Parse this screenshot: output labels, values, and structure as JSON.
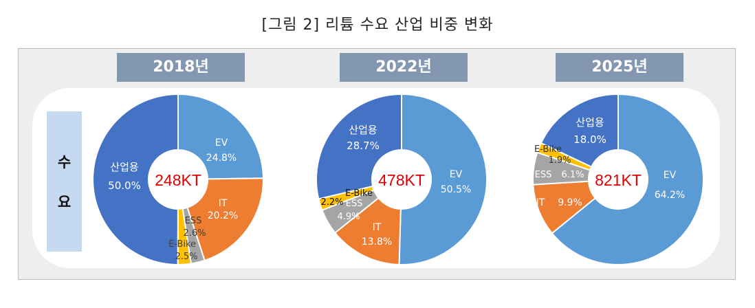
{
  "title": "[그림 2] 리튬 수요 산업 비중 변화",
  "row_label": [
    "수",
    "요"
  ],
  "colors": {
    "산업용": "#4472c4",
    "EV": "#5b9bd5",
    "IT": "#ed7d31",
    "ESS": "#a5a5a5",
    "E-Bike": "#ffc000",
    "total_text": "#e00000"
  },
  "chart_data": [
    {
      "type": "pie",
      "year": "2018년",
      "total": "248KT",
      "slices": [
        {
          "name": "EV",
          "value": 24.8,
          "label": "24.8%"
        },
        {
          "name": "IT",
          "value": 20.2,
          "label": "20.2%"
        },
        {
          "name": "ESS",
          "value": 2.6,
          "label": "2.6%"
        },
        {
          "name": "E-Bike",
          "value": 2.5,
          "label": "2.5%"
        },
        {
          "name": "산업용",
          "value": 50.0,
          "label": "50.0%"
        }
      ]
    },
    {
      "type": "pie",
      "year": "2022년",
      "total": "478KT",
      "slices": [
        {
          "name": "EV",
          "value": 50.5,
          "label": "50.5%"
        },
        {
          "name": "IT",
          "value": 13.8,
          "label": "13.8%"
        },
        {
          "name": "ESS",
          "value": 4.9,
          "label": "4.9%"
        },
        {
          "name": "E-Bike",
          "value": 2.2,
          "label": "2.2%"
        },
        {
          "name": "산업용",
          "value": 28.7,
          "label": "28.7%"
        }
      ]
    },
    {
      "type": "pie",
      "year": "2025년",
      "total": "821KT",
      "slices": [
        {
          "name": "EV",
          "value": 64.2,
          "label": "64.2%"
        },
        {
          "name": "IT",
          "value": 9.9,
          "label": "9.9%"
        },
        {
          "name": "ESS",
          "value": 6.1,
          "label": "6.1%"
        },
        {
          "name": "E-Bike",
          "value": 1.9,
          "label": "1.9%"
        },
        {
          "name": "산업용",
          "value": 18.0,
          "label": "18.0%"
        }
      ]
    }
  ]
}
